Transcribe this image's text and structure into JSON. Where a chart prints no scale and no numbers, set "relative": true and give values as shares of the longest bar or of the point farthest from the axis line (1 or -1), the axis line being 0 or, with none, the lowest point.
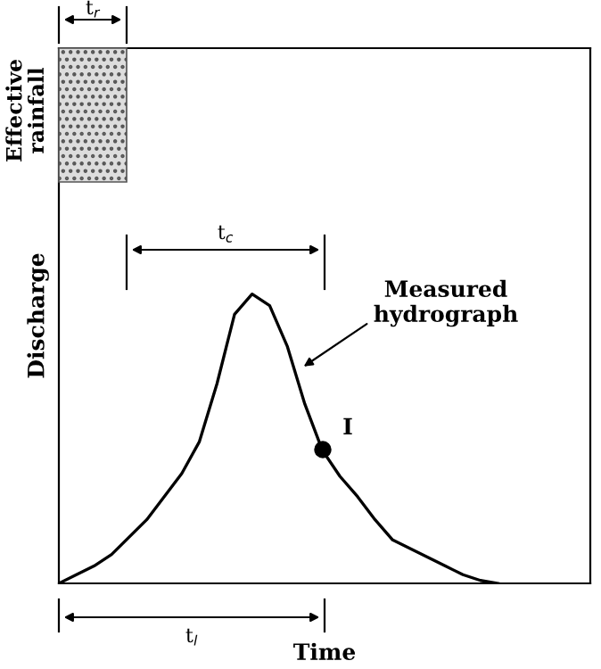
{
  "chart_data": {
    "type": "line",
    "relative": true,
    "xlabel": "Time",
    "ylabel": "Discharge",
    "categories": [
      null,
      null,
      null,
      null,
      null,
      null,
      null,
      null,
      null,
      null,
      null,
      null,
      null,
      null,
      null,
      null,
      null,
      null,
      null,
      null,
      null,
      null,
      null,
      null,
      null,
      null
    ],
    "series": [
      {
        "color": "#000000",
        "values": [
          0,
          0.03,
          0.06,
          0.1,
          0.16,
          0.22,
          0.3,
          0.38,
          0.49,
          0.69,
          0.93,
          1,
          0.96,
          0.82,
          0.62,
          0.46,
          0.37,
          0.3,
          0.22,
          0.15,
          0.12,
          0.09,
          0.06,
          0.03,
          0.01,
          0
        ]
      }
    ],
    "annotations": [
      "Effective\nrainfall",
      "t$_{r}$",
      "t$_{c}$",
      "t$_{l}$",
      "Measured\nhydrograph",
      "I"
    ]
  }
}
